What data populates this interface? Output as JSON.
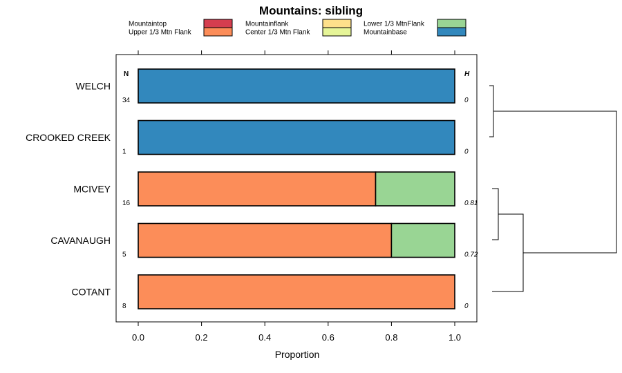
{
  "chart_data": {
    "type": "bar",
    "orientation": "horizontal",
    "stacked": true,
    "title": "Mountains: sibling",
    "xlabel": "Proportion",
    "ylabel": "",
    "xlim": [
      0,
      1
    ],
    "xticks": [
      "0.0",
      "0.2",
      "0.4",
      "0.6",
      "0.8",
      "1.0"
    ],
    "xtick_values": [
      0,
      0.2,
      0.4,
      0.6,
      0.8,
      1.0
    ],
    "n_header": "N",
    "h_header": "H",
    "categories": [
      "WELCH",
      "CROOKED CREEK",
      "MCIVEY",
      "CAVANAUGH",
      "COTANT"
    ],
    "n_values": [
      "34",
      "1",
      "16",
      "5",
      "8"
    ],
    "h_values": [
      "0",
      "0",
      "0.81",
      "0.72",
      "0"
    ],
    "series": [
      {
        "name": "Mountaintop",
        "color": "#d53e4f",
        "values": [
          0,
          0,
          0,
          0,
          0
        ]
      },
      {
        "name": "Upper 1/3 Mtn Flank",
        "color": "#fc8d59",
        "values": [
          0,
          0,
          0.75,
          0.8,
          1.0
        ]
      },
      {
        "name": "Mountainflank",
        "color": "#fee08b",
        "values": [
          0,
          0,
          0,
          0,
          0
        ]
      },
      {
        "name": "Center 1/3 Mtn Flank",
        "color": "#e6f598",
        "values": [
          0,
          0,
          0,
          0,
          0
        ]
      },
      {
        "name": "Lower 1/3 MtnFlank",
        "color": "#99d594",
        "values": [
          0,
          0,
          0.25,
          0.2,
          0
        ]
      },
      {
        "name": "Mountainbase",
        "color": "#3288bd",
        "values": [
          1.0,
          1.0,
          0,
          0,
          0
        ]
      }
    ],
    "legend_position": "top",
    "dendrogram": {
      "note": "hierarchical clustering of rows",
      "merges": [
        [
          "WELCH",
          "CROOKED CREEK"
        ],
        [
          "MCIVEY",
          "CAVANAUGH"
        ],
        [
          "MCIVEY+CAVANAUGH",
          "COTANT"
        ],
        [
          "WELCH+CROOKED CREEK",
          "MCIVEY+CAVANAUGH+COTANT"
        ]
      ],
      "relative_heights": [
        0.05,
        0.05,
        0.24,
        0.9
      ]
    }
  }
}
